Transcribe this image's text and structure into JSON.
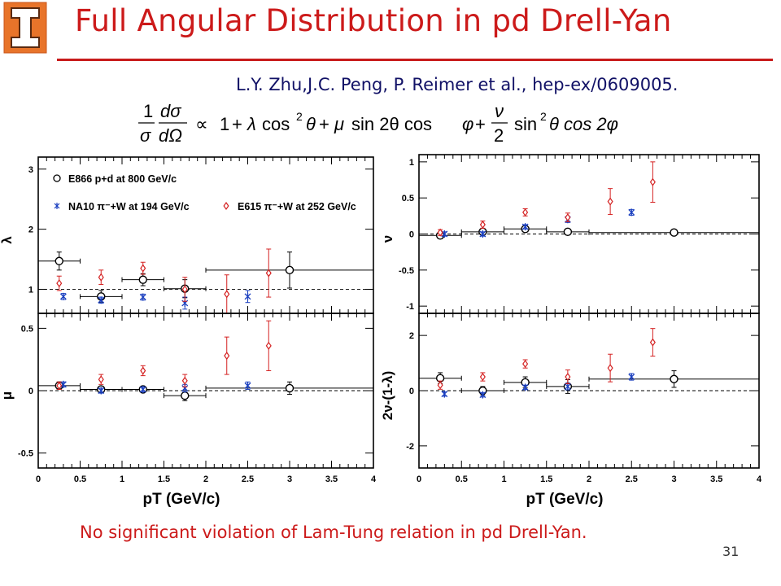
{
  "slide": {
    "title": "Full Angular Distribution in pd Drell-Yan",
    "reference": "L.Y. Zhu,J.C. Peng, P. Reimer et al., hep-ex/0609005.",
    "conclusion": "No significant violation of Lam-Tung relation in pd Drell-Yan.",
    "slide_number": "31",
    "accent_color": "#cc1a1a"
  },
  "formula": {
    "lhs_num": "1",
    "lhs_den": "σ",
    "frac_num": "dσ",
    "frac_den": "dΩ",
    "propto": "∝",
    "one": "1",
    "term1_coef": "λ",
    "term1_fn": "cos",
    "term1_pow": "2",
    "term1_arg": "θ",
    "term2_coef": "μ",
    "term2_fn": "sin 2θ cos",
    "term2_arg": "φ",
    "term3_num": "ν",
    "term3_den": "2",
    "term3_fn": "sin",
    "term3_pow": "2",
    "term3_arg": "θ cos 2φ",
    "plus": "+"
  },
  "chart_data": [
    {
      "type": "scatter",
      "ylabel": "λ",
      "xlim": [
        0,
        4
      ],
      "ylim": [
        0.6,
        3.2
      ],
      "yticks": [
        "1",
        "2",
        "3"
      ],
      "reference_line": 1,
      "legend": [
        "E866 p+d at 800 GeV/c",
        "NA10 π⁻+W at 194 GeV/c",
        "E615 π⁻+W at 252 GeV/c"
      ],
      "series": [
        {
          "name": "E866 p+d at 800 GeV/c",
          "x": [
            0.25,
            0.75,
            1.25,
            1.75,
            3.0
          ],
          "y": [
            1.47,
            0.88,
            1.16,
            1.01,
            1.32
          ],
          "yerr": [
            0.15,
            0.1,
            0.1,
            0.15,
            0.3
          ],
          "xerr": [
            [
              0.25,
              0.25
            ],
            [
              0.25,
              0.25
            ],
            [
              0.25,
              0.25
            ],
            [
              0.25,
              0.25
            ],
            [
              1.0,
              1.0
            ]
          ]
        },
        {
          "name": "NA10 π⁻+W at 194 GeV/c",
          "x": [
            0.3,
            0.75,
            1.25,
            1.75,
            2.5
          ],
          "y": [
            0.88,
            0.82,
            0.87,
            0.77,
            0.88
          ],
          "yerr": [
            0.05,
            0.05,
            0.05,
            0.1,
            0.1
          ]
        },
        {
          "name": "E615 π⁻+W at 252 GeV/c",
          "x": [
            0.25,
            0.75,
            1.25,
            1.75,
            2.25,
            2.75
          ],
          "y": [
            1.1,
            1.2,
            1.35,
            1.0,
            0.92,
            1.27
          ],
          "yerr": [
            0.12,
            0.12,
            0.1,
            0.2,
            0.32,
            0.4
          ]
        }
      ]
    },
    {
      "type": "scatter",
      "ylabel": "ν",
      "xlim": [
        0,
        4
      ],
      "ylim": [
        -1.1,
        1.1
      ],
      "yticks": [
        "-1",
        "-0.5",
        "0",
        "0.5",
        "1"
      ],
      "reference_line": 0,
      "series": [
        {
          "name": "E866 p+d at 800 GeV/c",
          "x": [
            0.25,
            0.75,
            1.25,
            1.75,
            3.0
          ],
          "y": [
            -0.02,
            0.03,
            0.07,
            0.03,
            0.02
          ],
          "xerr": [
            [
              0.25,
              0.25
            ],
            [
              0.25,
              0.25
            ],
            [
              0.25,
              0.25
            ],
            [
              0.25,
              0.25
            ],
            [
              1.0,
              1.0
            ]
          ]
        },
        {
          "name": "NA10 π⁻+W at 194 GeV/c",
          "x": [
            0.3,
            0.75,
            1.25,
            1.75,
            2.5
          ],
          "y": [
            0.0,
            0.0,
            0.1,
            0.2,
            0.3
          ],
          "yerr": [
            0.03,
            0.03,
            0.03,
            0.04,
            0.04
          ]
        },
        {
          "name": "E615 π⁻+W at 252 GeV/c",
          "x": [
            0.25,
            0.75,
            1.25,
            1.75,
            2.25,
            2.75
          ],
          "y": [
            0.02,
            0.13,
            0.3,
            0.23,
            0.45,
            0.72
          ],
          "yerr": [
            0.04,
            0.05,
            0.05,
            0.06,
            0.18,
            0.28
          ]
        }
      ]
    },
    {
      "type": "scatter",
      "ylabel": "μ",
      "xlabel": "pT (GeV/c)",
      "xlim": [
        0,
        4
      ],
      "ylim": [
        -0.62,
        0.62
      ],
      "xticks": [
        "0",
        "0.5",
        "1",
        "1.5",
        "2",
        "2.5",
        "3",
        "3.5",
        "4"
      ],
      "yticks": [
        "-0.5",
        "0",
        "0.5"
      ],
      "reference_line": 0,
      "series": [
        {
          "name": "E866 p+d at 800 GeV/c",
          "x": [
            0.25,
            0.75,
            1.25,
            1.75,
            3.0
          ],
          "y": [
            0.04,
            0.01,
            0.01,
            -0.04,
            0.02
          ],
          "yerr": [
            0.03,
            0.02,
            0.02,
            0.04,
            0.05
          ],
          "xerr": [
            [
              0.25,
              0.25
            ],
            [
              0.25,
              0.25
            ],
            [
              0.25,
              0.25
            ],
            [
              0.25,
              0.25
            ],
            [
              1.0,
              1.0
            ]
          ]
        },
        {
          "name": "NA10 π⁻+W at 194 GeV/c",
          "x": [
            0.3,
            0.75,
            1.25,
            1.75,
            2.5
          ],
          "y": [
            0.05,
            0.0,
            0.01,
            0.02,
            0.04
          ],
          "yerr": [
            0.02,
            0.02,
            0.02,
            0.03,
            0.03
          ]
        },
        {
          "name": "E615 π⁻+W at 252 GeV/c",
          "x": [
            0.25,
            0.75,
            1.25,
            1.75,
            2.25,
            2.75
          ],
          "y": [
            0.04,
            0.09,
            0.16,
            0.08,
            0.28,
            0.36
          ],
          "yerr": [
            0.03,
            0.04,
            0.04,
            0.05,
            0.15,
            0.2
          ]
        }
      ]
    },
    {
      "type": "scatter",
      "ylabel": "2ν-(1-λ)",
      "xlabel": "pT (GeV/c)",
      "xlim": [
        0,
        4
      ],
      "ylim": [
        -2.8,
        2.8
      ],
      "xticks": [
        "0",
        "0.5",
        "1",
        "1.5",
        "2",
        "2.5",
        "3",
        "3.5",
        "4"
      ],
      "yticks": [
        "-2",
        "0",
        "2"
      ],
      "reference_line": 0,
      "series": [
        {
          "name": "E866 p+d at 800 GeV/c",
          "x": [
            0.25,
            0.75,
            1.25,
            1.75,
            3.0
          ],
          "y": [
            0.45,
            0.0,
            0.3,
            0.15,
            0.42
          ],
          "yerr": [
            0.2,
            0.15,
            0.2,
            0.25,
            0.3
          ],
          "xerr": [
            [
              0.25,
              0.25
            ],
            [
              0.25,
              0.25
            ],
            [
              0.25,
              0.25
            ],
            [
              0.25,
              0.25
            ],
            [
              1.0,
              1.0
            ]
          ]
        },
        {
          "name": "NA10 π⁻+W at 194 GeV/c",
          "x": [
            0.3,
            0.75,
            1.25,
            1.75,
            2.5
          ],
          "y": [
            -0.12,
            -0.15,
            0.12,
            0.15,
            0.5
          ],
          "yerr": [
            0.08,
            0.08,
            0.08,
            0.12,
            0.12
          ]
        },
        {
          "name": "E615 π⁻+W at 252 GeV/c",
          "x": [
            0.25,
            0.75,
            1.25,
            1.75,
            2.25,
            2.75
          ],
          "y": [
            0.2,
            0.5,
            0.97,
            0.5,
            0.82,
            1.75
          ],
          "yerr": [
            0.15,
            0.15,
            0.15,
            0.25,
            0.5,
            0.5
          ]
        }
      ]
    }
  ]
}
